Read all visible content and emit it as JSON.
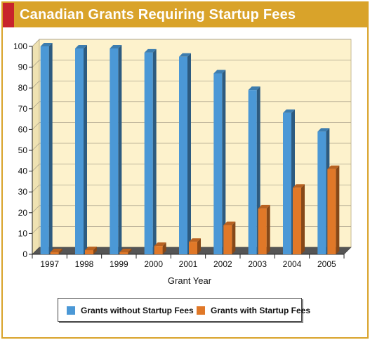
{
  "header": {
    "title": "Canadian Grants Requiring Startup Fees"
  },
  "colors": {
    "title_bar": "#d9a32a",
    "title_accent": "#c8232c",
    "plot_background": "#fdf2cc",
    "series_blue": "#4b98d6",
    "series_orange": "#e07828"
  },
  "chart_data": {
    "type": "bar",
    "title": "Canadian Grants Requiring Startup Fees",
    "xlabel": "Grant Year",
    "ylabel": "",
    "ylim": [
      0,
      100
    ],
    "yticks": [
      0,
      10,
      20,
      30,
      40,
      50,
      60,
      70,
      80,
      90,
      100
    ],
    "categories": [
      "1997",
      "1998",
      "1999",
      "2000",
      "2001",
      "2002",
      "2003",
      "2004",
      "2005"
    ],
    "grid": true,
    "legend_position": "bottom",
    "series": [
      {
        "name": "Grants without Startup Fees",
        "color": "#4b98d6",
        "values": [
          100,
          99,
          99,
          97,
          95,
          87,
          79,
          68,
          59
        ]
      },
      {
        "name": "Grants with Startup Fees",
        "color": "#e07828",
        "values": [
          1,
          2,
          1,
          4,
          6,
          14,
          22,
          32,
          41
        ]
      }
    ]
  }
}
